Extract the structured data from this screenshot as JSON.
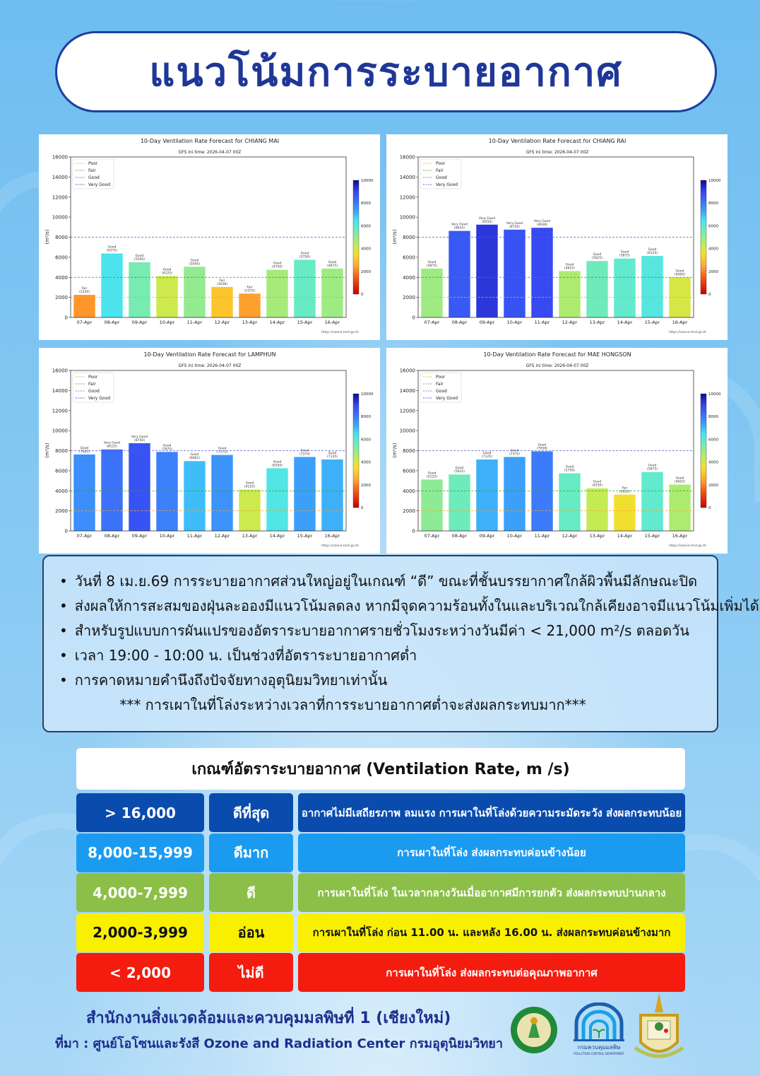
{
  "header": {
    "title": "แนวโน้มการระบายอากาศ"
  },
  "common": {
    "subtitle": "GFS ini time: 2026-04-07 00Z",
    "ylabel": "(m²/s)",
    "source_url": "https://ozone.tmd.go.th",
    "legend": [
      {
        "label": "Poor",
        "value": 2000,
        "color": "#f5a623"
      },
      {
        "label": "Fair",
        "value": 4000,
        "color": "#2ca02c"
      },
      {
        "label": "Good",
        "value": 8000,
        "color": "#5a5ad0"
      },
      {
        "label": "Very Good",
        "value": 16000,
        "color": "#3030c0"
      }
    ],
    "colorbar_ticks": [
      "10000",
      "8000",
      "6000",
      "4000",
      "2000",
      "0"
    ]
  },
  "chart_data": [
    {
      "type": "bar",
      "title": "10-Day Ventilation Rate Forecast for CHIANG MAI",
      "ylim": [
        0,
        16000
      ],
      "yticks": [
        0,
        2000,
        4000,
        6000,
        8000,
        10000,
        12000,
        14000,
        16000
      ],
      "categories": [
        "07-Apr",
        "08-Apr",
        "09-Apr",
        "10-Apr",
        "11-Apr",
        "12-Apr",
        "13-Apr",
        "14-Apr",
        "15-Apr",
        "16-Apr"
      ],
      "values": [
        2250,
        6375,
        5500,
        4125,
        5050,
        3038,
        2375,
        4750,
        5750,
        4875
      ],
      "labels": [
        "Fair",
        "Good",
        "Good",
        "Good",
        "Good",
        "Fair",
        "Fair",
        "Good",
        "Good",
        "Good"
      ]
    },
    {
      "type": "bar",
      "title": "10-Day Ventilation Rate Forecast for CHIANG RAI",
      "ylim": [
        0,
        16000
      ],
      "yticks": [
        0,
        2000,
        4000,
        6000,
        8000,
        10000,
        12000,
        14000,
        16000
      ],
      "categories": [
        "07-Apr",
        "08-Apr",
        "09-Apr",
        "10-Apr",
        "11-Apr",
        "12-Apr",
        "13-Apr",
        "14-Apr",
        "15-Apr",
        "16-Apr"
      ],
      "values": [
        4875,
        8625,
        9250,
        8750,
        8938,
        4625,
        5625,
        5875,
        6125,
        4000
      ],
      "labels": [
        "Good",
        "Very Good",
        "Very Good",
        "Very Good",
        "Very Good",
        "Good",
        "Good",
        "Good",
        "Good",
        "Good"
      ]
    },
    {
      "type": "bar",
      "title": "10-Day Ventilation Rate Forecast for LAMPHUN",
      "ylim": [
        0,
        16000
      ],
      "yticks": [
        0,
        2000,
        4000,
        6000,
        8000,
        10000,
        12000,
        14000,
        16000
      ],
      "categories": [
        "07-Apr",
        "08-Apr",
        "09-Apr",
        "10-Apr",
        "11-Apr",
        "12-Apr",
        "13-Apr",
        "14-Apr",
        "15-Apr",
        "16-Apr"
      ],
      "values": [
        7625,
        8125,
        8750,
        7875,
        6962,
        7575,
        4125,
        6250,
        7375,
        7125
      ],
      "labels": [
        "Good",
        "Very Good",
        "Very Good",
        "Good",
        "Good",
        "Good",
        "Good",
        "Good",
        "Good",
        "Good"
      ]
    },
    {
      "type": "bar",
      "title": "10-Day Ventilation Rate Forecast for MAE HONGSON",
      "ylim": [
        0,
        16000
      ],
      "yticks": [
        0,
        2000,
        4000,
        6000,
        8000,
        10000,
        12000,
        14000,
        16000
      ],
      "categories": [
        "07-Apr",
        "08-Apr",
        "09-Apr",
        "10-Apr",
        "11-Apr",
        "12-Apr",
        "13-Apr",
        "14-Apr",
        "15-Apr",
        "16-Apr"
      ],
      "values": [
        5125,
        5625,
        7125,
        7375,
        7938,
        5750,
        4250,
        3625,
        5875,
        4625
      ],
      "labels": [
        "Good",
        "Good",
        "Good",
        "Good",
        "Good",
        "Good",
        "Good",
        "Fair",
        "Good",
        "Good"
      ]
    }
  ],
  "notes": {
    "items": [
      "วันที่ 8 เม.ย.69 การระบายอากาศส่วนใหญ่อยู่ในเกณฑ์ “ดี” ขณะที่ชั้นบรรยากาศใกล้ผิวพื้นมีลักษณะปิด",
      "ส่งผลให้การสะสมของฝุ่นละอองมีแนวโน้มลดลง หากมีจุดความร้อนทั้งในและบริเวณใกล้เคียงอาจมีแนวโน้มเพิ่มได้",
      "สำหรับรูปแบบการผันแปรของอัตราระบายอากาศรายชั่วโมงระหว่างวันมีค่า < 21,000 m²/s ตลอดวัน",
      "เวลา 19:00 - 10:00 น. เป็นช่วงที่อัตราระบายอากาศต่ำ",
      "การคาดหมายคำนึงถึงปัจจัยทางอุตุนิยมวิทยาเท่านั้น"
    ],
    "warning": "*** การเผาในที่โล่งระหว่างเวลาที่การระบายอากาศต่ำจะส่งผลกระทบมาก***"
  },
  "criteria": {
    "title": "เกณฑ์อัตราระบายอากาศ (Ventilation Rate, m /s)",
    "rows": [
      {
        "range": "> 16,000",
        "level": "ดีที่สุด",
        "desc": "อากาศไม่มีเสถียรภาพ ลมแรง การเผาในที่โล่งด้วยความระมัดระวัง ส่งผลกระทบน้อย",
        "color": "#0a4cae",
        "text_color": "#ffffff"
      },
      {
        "range": "8,000-15,999",
        "level": "ดีมาก",
        "desc": "การเผาในที่โล่ง ส่งผลกระทบค่อนข้างน้อย",
        "color": "#1b9bf0",
        "text_color": "#ffffff"
      },
      {
        "range": "4,000-7,999",
        "level": "ดี",
        "desc": "การเผาในที่โล่ง ในเวลากลางวันเมื่ออากาศมีการยกตัว ส่งผลกระทบปานกลาง",
        "color": "#8cbf48",
        "text_color": "#ffffff"
      },
      {
        "range": "2,000-3,999",
        "level": "อ่อน",
        "desc": "การเผาในที่โล่ง ก่อน 11.00 น. และหลัง 16.00 น. ส่งผลกระทบค่อนข้างมาก",
        "color": "#f8f000",
        "text_color": "#111111"
      },
      {
        "range": "< 2,000",
        "level": "ไม่ดี",
        "desc": "การเผาในที่โล่ง ส่งผลกระทบต่อคุณภาพอากาศ",
        "color": "#f31c0f",
        "text_color": "#ffffff"
      }
    ]
  },
  "footer": {
    "office": "สำนักงานสิ่งแวดล้อมและควบคุมมลพิษที่ 1 (เชียงใหม่)",
    "source": "ที่มา : ศูนย์โอโซนและรังสี Ozone and Radiation Center กรมอุตุนิยมวิทยา",
    "logos": {
      "tmd": "กรมอุตุนิยมวิทยา METEOROLOGICAL DEPARTMENT",
      "pcd": "กรมควบคุมมลพิษ",
      "pcd_en": "POLLUTION CONTROL DEPARTMENT"
    }
  }
}
